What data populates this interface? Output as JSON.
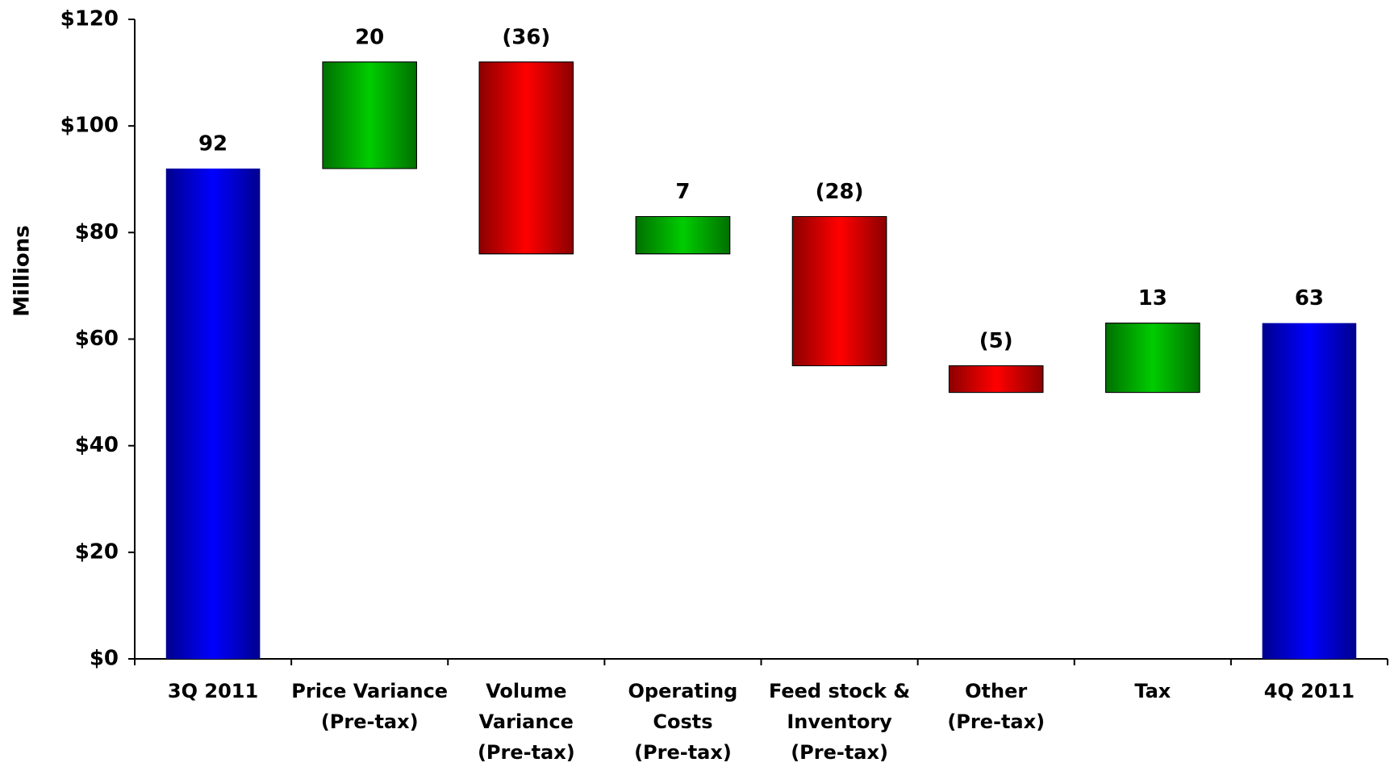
{
  "chart_data": {
    "type": "waterfall",
    "y_label": "Millions",
    "categories": [
      "3Q 2011",
      "Price Variance\n(Pre-tax)",
      "Volume\nVariance\n(Pre-tax)",
      "Operating\nCosts\n(Pre-tax)",
      "Feed stock &\nInventory\n(Pre-tax)",
      "Other\n(Pre-tax)",
      "Tax",
      "4Q 2011"
    ],
    "values": [
      92,
      20,
      -36,
      7,
      -28,
      -5,
      13,
      63
    ],
    "value_labels": [
      "92",
      "20",
      "(36)",
      "7",
      "(28)",
      "(5)",
      "13",
      "63"
    ],
    "colors": {
      "total": "#0000ff",
      "increase": "#00cc00",
      "decrease": "#ff0000"
    },
    "ylim": [
      0,
      120
    ],
    "yticks": [
      {
        "value": 0,
        "label": "$0"
      },
      {
        "value": 20,
        "label": "$20"
      },
      {
        "value": 40,
        "label": "$40"
      },
      {
        "value": 60,
        "label": "$60"
      },
      {
        "value": 80,
        "label": "$80"
      },
      {
        "value": 100,
        "label": "$100"
      },
      {
        "value": 120,
        "label": "$120"
      }
    ]
  }
}
